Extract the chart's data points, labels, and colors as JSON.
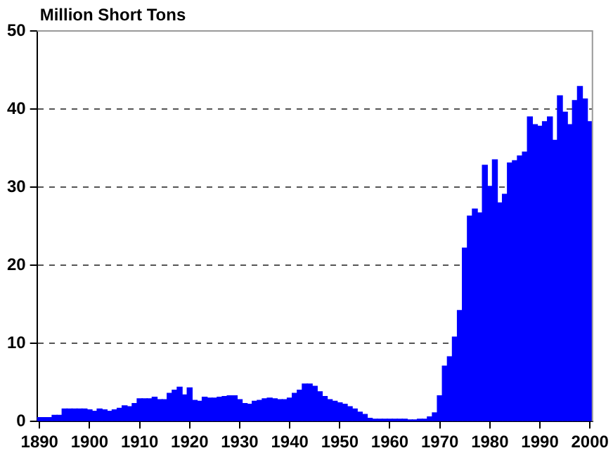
{
  "chart_data": {
    "type": "bar",
    "ylabel": "Million Short Tons",
    "x": [
      1890,
      1891,
      1892,
      1893,
      1894,
      1895,
      1896,
      1897,
      1898,
      1899,
      1900,
      1901,
      1902,
      1903,
      1904,
      1905,
      1906,
      1907,
      1908,
      1909,
      1910,
      1911,
      1912,
      1913,
      1914,
      1915,
      1916,
      1917,
      1918,
      1919,
      1920,
      1921,
      1922,
      1923,
      1924,
      1925,
      1926,
      1927,
      1928,
      1929,
      1930,
      1931,
      1932,
      1933,
      1934,
      1935,
      1936,
      1937,
      1938,
      1939,
      1940,
      1941,
      1942,
      1943,
      1944,
      1945,
      1946,
      1947,
      1948,
      1949,
      1950,
      1951,
      1952,
      1953,
      1954,
      1955,
      1956,
      1957,
      1958,
      1959,
      1960,
      1961,
      1962,
      1963,
      1964,
      1965,
      1966,
      1967,
      1968,
      1969,
      1970,
      1971,
      1972,
      1973,
      1974,
      1975,
      1976,
      1977,
      1978,
      1979,
      1980,
      1981,
      1982,
      1983,
      1984,
      1985,
      1986,
      1987,
      1988,
      1989,
      1990,
      1991,
      1992,
      1993,
      1994,
      1995,
      1996,
      1997,
      1998,
      1999,
      2000
    ],
    "values": [
      0.5,
      0.5,
      0.5,
      0.8,
      0.8,
      1.6,
      1.6,
      1.6,
      1.6,
      1.6,
      1.5,
      1.3,
      1.6,
      1.5,
      1.3,
      1.5,
      1.7,
      2.0,
      1.9,
      2.3,
      2.9,
      2.9,
      2.9,
      3.1,
      2.8,
      2.8,
      3.6,
      4.0,
      4.4,
      3.4,
      4.3,
      2.7,
      2.6,
      3.1,
      3.0,
      3.0,
      3.1,
      3.2,
      3.3,
      3.3,
      2.8,
      2.3,
      2.2,
      2.6,
      2.7,
      2.9,
      3.0,
      2.9,
      2.8,
      2.8,
      3.0,
      3.6,
      4.0,
      4.8,
      4.8,
      4.5,
      3.8,
      3.2,
      2.8,
      2.6,
      2.4,
      2.2,
      1.9,
      1.6,
      1.2,
      0.9,
      0.4,
      0.3,
      0.3,
      0.3,
      0.3,
      0.3,
      0.3,
      0.3,
      0.2,
      0.2,
      0.3,
      0.3,
      0.6,
      1.1,
      3.3,
      7.1,
      8.3,
      10.8,
      14.2,
      22.2,
      26.3,
      27.2,
      26.7,
      32.8,
      30.1,
      33.5,
      28.0,
      29.1,
      33.1,
      33.4,
      34.0,
      34.5,
      39.0,
      38.0,
      37.8,
      38.4,
      39.0,
      36.0,
      41.7,
      39.6,
      38.0,
      41.1,
      42.9,
      41.3,
      38.4
    ],
    "color": "#0000ff",
    "xlim": [
      1889.5,
      2000.5
    ],
    "xticks": [
      1890,
      1900,
      1910,
      1920,
      1930,
      1940,
      1950,
      1960,
      1970,
      1980,
      1990,
      2000
    ],
    "ylim": [
      0,
      50
    ],
    "yticks": [
      0,
      10,
      20,
      30,
      40,
      50
    ],
    "grid": "y",
    "legend": false
  }
}
